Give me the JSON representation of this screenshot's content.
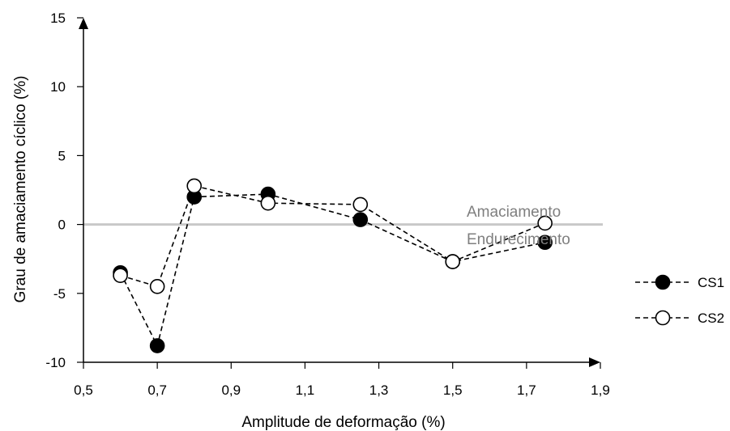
{
  "chart_data": {
    "type": "scatter",
    "xlabel": "Amplitude de deformação (%)",
    "ylabel": "Grau de amaciamento cíclico (%)",
    "xlim": [
      0.5,
      1.9
    ],
    "ylim": [
      -10,
      15
    ],
    "x_ticks": [
      "0,5",
      "0,7",
      "0,9",
      "1,1",
      "1,3",
      "1,5",
      "1,7",
      "1,9"
    ],
    "y_ticks": [
      "-10",
      "-5",
      "0",
      "5",
      "10",
      "15"
    ],
    "legend_position": "right",
    "reference_line": {
      "y": 0,
      "color": "#c8c8c8"
    },
    "annotations": {
      "above": "Amaciamento",
      "below": "Endurecimento"
    },
    "series": [
      {
        "name": "CS1",
        "marker": "filled-circle",
        "line": "dashed",
        "x": [
          0.6,
          0.7,
          0.8,
          1.0,
          1.25,
          1.5,
          1.75
        ],
        "y": [
          -3.5,
          -8.8,
          2.0,
          2.2,
          0.35,
          -2.7,
          -1.3
        ]
      },
      {
        "name": "CS2",
        "marker": "open-circle",
        "line": "dashed",
        "x": [
          0.6,
          0.7,
          0.8,
          1.0,
          1.25,
          1.5,
          1.75
        ],
        "y": [
          -3.7,
          -4.5,
          2.8,
          1.55,
          1.45,
          -2.7,
          0.1
        ]
      }
    ]
  }
}
